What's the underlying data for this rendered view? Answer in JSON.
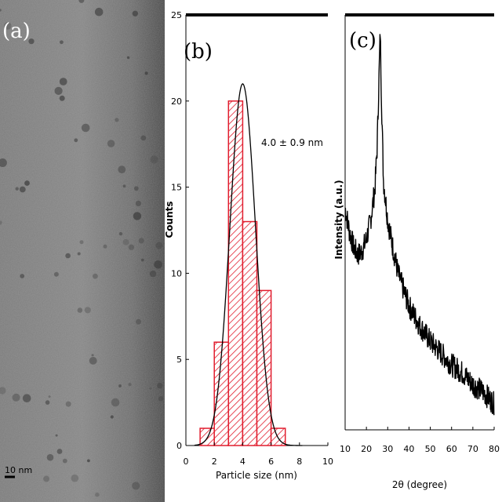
{
  "panels": {
    "a": {
      "letter": "(a)",
      "scale_bar": "10 nm"
    },
    "b": {
      "letter": "(b)"
    },
    "c": {
      "letter": "(c)"
    }
  },
  "chart_data": [
    {
      "panel": "b",
      "type": "bar",
      "xlabel": "Particle size (nm)",
      "ylabel": "Counts",
      "xlim": [
        0,
        10
      ],
      "ylim": [
        0,
        25
      ],
      "xticks": [
        0,
        2,
        4,
        6,
        8,
        10
      ],
      "yticks": [
        0,
        5,
        10,
        15,
        20,
        25
      ],
      "bins": [
        {
          "start": 1,
          "end": 2,
          "count": 1
        },
        {
          "start": 2,
          "end": 3,
          "count": 6
        },
        {
          "start": 3,
          "end": 4,
          "count": 20
        },
        {
          "start": 4,
          "end": 5,
          "count": 13
        },
        {
          "start": 5,
          "end": 6,
          "count": 9
        },
        {
          "start": 6,
          "end": 7,
          "count": 1
        }
      ],
      "fit": {
        "kind": "gaussian",
        "mean": 4.0,
        "sigma": 0.9,
        "peak": 21
      },
      "annotation": "4.0 ± 0.9 nm",
      "bar_color": "#e11d2e",
      "grid": false
    },
    {
      "panel": "c",
      "type": "line",
      "xlabel": "2θ (degree)",
      "ylabel": "Intensity (a.u.)",
      "xlim": [
        10,
        80
      ],
      "xticks": [
        10,
        20,
        30,
        40,
        50,
        60,
        70,
        80
      ],
      "x": [
        10,
        12,
        14,
        16,
        18,
        20,
        22,
        24,
        25,
        26,
        26.5,
        27,
        28,
        30,
        32,
        35,
        40,
        45,
        50,
        55,
        60,
        65,
        70,
        75,
        80
      ],
      "y": [
        0.55,
        0.49,
        0.45,
        0.43,
        0.44,
        0.47,
        0.52,
        0.6,
        0.7,
        0.9,
        1.0,
        0.85,
        0.62,
        0.52,
        0.46,
        0.38,
        0.3,
        0.25,
        0.21,
        0.18,
        0.15,
        0.13,
        0.1,
        0.08,
        0.05
      ],
      "line_color": "#000000",
      "noisy": true,
      "grid": false
    }
  ]
}
